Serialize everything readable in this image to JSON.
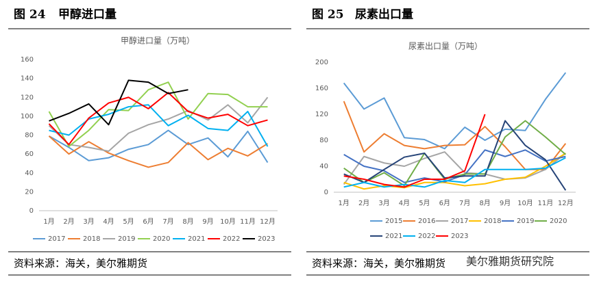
{
  "captions": [
    {
      "number": "图 24",
      "title": "甲醇进口量"
    },
    {
      "number": "图 25",
      "title": "尿素出口量"
    }
  ],
  "sources": [
    "资料来源：海关，美尔雅期货",
    "资料来源：海关，美尔雅期货"
  ],
  "watermark": "美尔雅期货研究院",
  "chart_data": [
    {
      "type": "line",
      "title": "甲醇进口量（万吨）",
      "categories": [
        "1月",
        "2月",
        "3月",
        "4月",
        "5月",
        "6月",
        "7月",
        "8月",
        "9月",
        "10月",
        "11月",
        "12月"
      ],
      "ylim": [
        0,
        160
      ],
      "yticks": [
        0,
        20,
        40,
        60,
        80,
        100,
        120,
        140,
        160
      ],
      "grid": false,
      "legend": "bottom",
      "series": [
        {
          "name": "2017",
          "color": "#5b9bd5",
          "values": [
            79,
            67,
            53,
            56,
            65,
            70,
            85,
            70,
            77,
            57,
            84,
            51
          ]
        },
        {
          "name": "2018",
          "color": "#ed7d31",
          "values": [
            79,
            60,
            73,
            61,
            53,
            46,
            51,
            72,
            54,
            66,
            58,
            71
          ]
        },
        {
          "name": "2019",
          "color": "#a5a5a5",
          "values": [
            90,
            70,
            67,
            63,
            82,
            91,
            97,
            106,
            96,
            112,
            93,
            120
          ]
        },
        {
          "name": "2020",
          "color": "#92d050",
          "values": [
            105,
            68,
            85,
            107,
            106,
            128,
            136,
            97,
            124,
            123,
            110,
            110
          ]
        },
        {
          "name": "2021",
          "color": "#00b0f0",
          "values": [
            85,
            80,
            97,
            102,
            110,
            112,
            90,
            101,
            87,
            85,
            105,
            68
          ]
        },
        {
          "name": "2022",
          "color": "#ff0000",
          "values": [
            92,
            70,
            98,
            114,
            120,
            108,
            125,
            105,
            98,
            102,
            90,
            96
          ]
        },
        {
          "name": "2023",
          "color": "#000000",
          "values": [
            95,
            103,
            113,
            91,
            138,
            136,
            124,
            128,
            null,
            null,
            null,
            null
          ]
        }
      ]
    },
    {
      "type": "line",
      "title": "尿素出口量（万吨）",
      "categories": [
        "1月",
        "2月",
        "3月",
        "4月",
        "5月",
        "6月",
        "7月",
        "8月",
        "9月",
        "10月",
        "11月",
        "12月"
      ],
      "ylim": [
        0,
        200
      ],
      "yticks": [
        0,
        40,
        80,
        120,
        160,
        200
      ],
      "grid": false,
      "legend": "bottom",
      "series": [
        {
          "name": "2015",
          "color": "#5b9bd5",
          "values": [
            168,
            128,
            145,
            84,
            81,
            67,
            100,
            80,
            97,
            95,
            143,
            184
          ]
        },
        {
          "name": "2016",
          "color": "#ed7d31",
          "values": [
            140,
            62,
            90,
            72,
            67,
            72,
            73,
            101,
            70,
            35,
            35,
            75
          ]
        },
        {
          "name": "2017",
          "color": "#a5a5a5",
          "values": [
            12,
            55,
            45,
            40,
            52,
            62,
            30,
            28,
            20,
            22,
            35,
            60
          ]
        },
        {
          "name": "2018",
          "color": "#ffc000",
          "values": [
            15,
            5,
            10,
            7,
            15,
            15,
            10,
            13,
            20,
            23,
            40,
            60
          ]
        },
        {
          "name": "2019",
          "color": "#4472c4",
          "values": [
            58,
            40,
            33,
            15,
            22,
            16,
            27,
            65,
            55,
            65,
            48,
            55
          ]
        },
        {
          "name": "2020",
          "color": "#70ad47",
          "values": [
            37,
            15,
            30,
            10,
            60,
            20,
            28,
            28,
            85,
            110,
            85,
            58
          ]
        },
        {
          "name": "2021",
          "color": "#264478",
          "values": [
            28,
            15,
            35,
            54,
            60,
            22,
            25,
            25,
            110,
            72,
            50,
            3
          ]
        },
        {
          "name": "2022",
          "color": "#00b0f0",
          "values": [
            8,
            15,
            8,
            12,
            8,
            18,
            15,
            35,
            35,
            35,
            37,
            53
          ]
        },
        {
          "name": "2023",
          "color": "#ff0000",
          "values": [
            25,
            20,
            12,
            8,
            20,
            20,
            33,
            120,
            null,
            null,
            null,
            null
          ]
        }
      ]
    }
  ]
}
